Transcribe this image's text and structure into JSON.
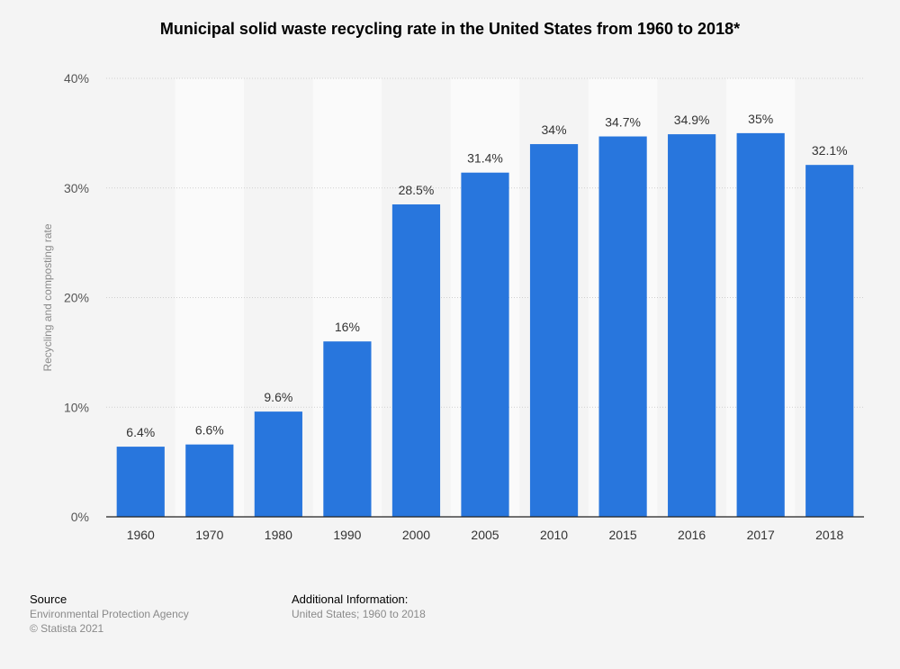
{
  "chart_data": {
    "type": "bar",
    "title": "Municipal solid waste recycling rate in the United States from 1960 to 2018*",
    "xlabel": "",
    "ylabel": "Recycling and composting rate",
    "categories": [
      "1960",
      "1970",
      "1980",
      "1990",
      "2000",
      "2005",
      "2010",
      "2015",
      "2016",
      "2017",
      "2018"
    ],
    "values": [
      6.4,
      6.6,
      9.6,
      16,
      28.5,
      31.4,
      34,
      34.7,
      34.9,
      35,
      32.1
    ],
    "value_labels": [
      "6.4%",
      "6.6%",
      "9.6%",
      "16%",
      "28.5%",
      "31.4%",
      "34%",
      "34.7%",
      "34.9%",
      "35%",
      "32.1%"
    ],
    "ylim": [
      0,
      40
    ],
    "yticks": [
      0,
      10,
      20,
      30,
      40
    ],
    "ytick_labels": [
      "0%",
      "10%",
      "20%",
      "30%",
      "40%"
    ],
    "grid": true,
    "bar_color": "#2876dd"
  },
  "footer": {
    "source_heading": "Source",
    "source_name": "Environmental Protection Agency",
    "copyright": "© Statista 2021",
    "info_heading": "Additional Information:",
    "info_text": "United States; 1960 to 2018"
  }
}
